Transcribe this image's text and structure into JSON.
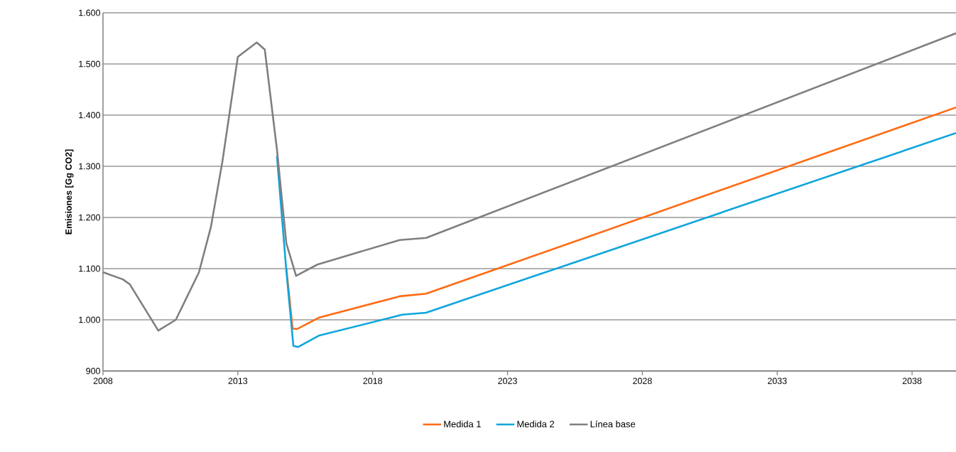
{
  "chart_data": {
    "type": "line",
    "ylabel": "Emisiones [Gg CO2]",
    "xlim": [
      2008,
      2039.63
    ],
    "xticks": [
      2008,
      2013,
      2018,
      2023,
      2028,
      2033,
      2038
    ],
    "ylim": [
      900,
      1600
    ],
    "yticks": [
      900,
      {
        "value": 1000,
        "label": "1.000"
      },
      {
        "value": 1100,
        "label": "1.100"
      },
      {
        "value": 1200,
        "label": "1.200"
      },
      {
        "value": 1300,
        "label": "1.300"
      },
      {
        "value": 1400,
        "label": "1.400"
      },
      {
        "value": 1500,
        "label": "1.500"
      },
      {
        "value": 1600,
        "label": "1.600"
      }
    ],
    "grid": "y",
    "legend": "bottom",
    "marker": "none",
    "line_style": "solid",
    "series": [
      {
        "name": "Medida 1",
        "color": "#ff6a13",
        "x": [
          2014.8,
          2015.03,
          2015.2,
          2016.0,
          2019.0,
          2019.98,
          2039.63
        ],
        "values": [
          1101,
          983,
          982,
          1004,
          1046,
          1051,
          1415
        ]
      },
      {
        "name": "Medida 2",
        "color": "#0ea5dc",
        "x": [
          2014.45,
          2014.8,
          2015.06,
          2015.24,
          2016.0,
          2019.1,
          2019.98,
          2039.63
        ],
        "values": [
          1320,
          1095,
          949,
          947,
          969,
          1010,
          1014,
          1365
        ]
      },
      {
        "name": "Línea base",
        "color": "#7f7f7f",
        "x": [
          2008,
          2008.74,
          2009.0,
          2010.05,
          2010.7,
          2011.56,
          2012.0,
          2012.43,
          2013.0,
          2013.7,
          2014.0,
          2014.45,
          2014.8,
          2015.16,
          2015.95,
          2019.0,
          2019.98,
          2039.63
        ],
        "values": [
          1093,
          1079,
          1069,
          979,
          1000,
          1093,
          1181,
          1310,
          1514,
          1542,
          1528,
          1333,
          1149,
          1086,
          1108,
          1156,
          1160,
          1560
        ]
      }
    ]
  }
}
